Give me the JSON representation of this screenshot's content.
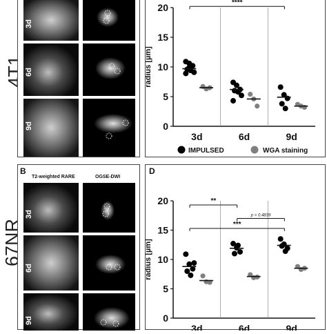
{
  "rows": [
    {
      "label": "4T1",
      "panel_letter": "",
      "chart_letter": "",
      "headers": {
        "left": "",
        "right": ""
      },
      "days": [
        "3d",
        "6d",
        "9d"
      ]
    },
    {
      "label": "67NR",
      "panel_letter": "B",
      "chart_letter": "D",
      "headers": {
        "left": "T2-weighted RARE",
        "right": "OGSE-DWI"
      },
      "days": [
        "3d",
        "6d",
        "9d"
      ]
    }
  ],
  "legend": [
    {
      "label": "IMPULSED",
      "color": "#000000"
    },
    {
      "label": "WGA staining",
      "color": "#808080"
    }
  ],
  "chart_data": [
    {
      "type": "scatter",
      "ylabel": "radius [µm]",
      "ylim": [
        0,
        20
      ],
      "yticks": [
        0,
        5,
        10,
        15,
        20
      ],
      "categories": [
        "3d",
        "6d",
        "9d"
      ],
      "series": [
        {
          "name": "IMPULSED",
          "color": "#000000",
          "points": [
            [
              10.9,
              10.6,
              10.2,
              9.6,
              9.4,
              9.1,
              8.9,
              9.9
            ],
            [
              7.4,
              6.9,
              6.2,
              6.0,
              5.8,
              5.2,
              4.3
            ],
            [
              6.6,
              5.3,
              4.7,
              3.8,
              3.0
            ]
          ],
          "means": [
            9.7,
            6.2,
            4.9
          ]
        },
        {
          "name": "WGA staining",
          "color": "#808080",
          "points": [
            [
              6.7,
              6.3,
              6.5
            ],
            [
              5.4,
              4.6,
              3.4
            ],
            [
              3.7,
              3.4,
              3.2
            ]
          ],
          "means": [
            6.5,
            4.6,
            3.4
          ]
        }
      ],
      "significance": [
        {
          "from": 0,
          "to": 2,
          "label": "****",
          "y": 20.2
        }
      ]
    },
    {
      "type": "scatter",
      "ylabel": "radius [µm]",
      "ylim": [
        0,
        20
      ],
      "yticks": [
        0,
        5,
        10,
        15,
        20
      ],
      "categories": [
        "3d",
        "6d",
        "9d"
      ],
      "series": [
        {
          "name": "IMPULSED",
          "color": "#000000",
          "points": [
            [
              10.9,
              9.2,
              8.4,
              8.0,
              7.3,
              9.4
            ],
            [
              12.7,
              12.0,
              11.3,
              11.0,
              12.4
            ],
            [
              13.5,
              12.6,
              11.9,
              12.3,
              11.4
            ]
          ],
          "means": [
            8.8,
            11.9,
            12.4
          ]
        },
        {
          "name": "WGA staining",
          "color": "#808080",
          "points": [
            [
              7.2,
              6.2,
              6.1
            ],
            [
              7.4,
              6.9,
              7.0
            ],
            [
              8.8,
              8.3,
              8.5
            ]
          ],
          "means": [
            6.4,
            7.1,
            8.5
          ]
        }
      ],
      "significance": [
        {
          "from": 0,
          "to": 1,
          "label": "**",
          "y": 19.3
        },
        {
          "from": 1,
          "to": 2,
          "label": "p = 0.4839",
          "y": 17.0
        },
        {
          "from": 0,
          "to": 2,
          "label": "***",
          "y": 15.3
        }
      ]
    }
  ]
}
